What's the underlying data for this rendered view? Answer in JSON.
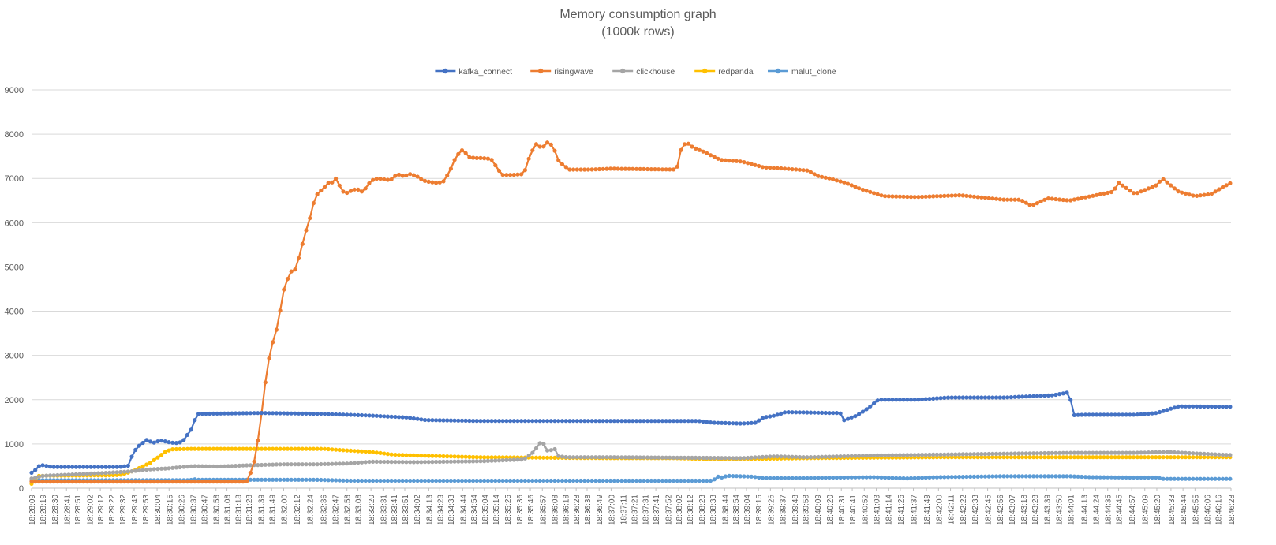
{
  "chart_data": {
    "type": "line",
    "title": "Memory consumption graph",
    "subtitle": "(1000k rows)",
    "xlabel": "",
    "ylabel": "",
    "ylim": [
      0,
      9000
    ],
    "yticks": [
      0,
      1000,
      2000,
      3000,
      4000,
      5000,
      6000,
      7000,
      8000,
      9000
    ],
    "grid": true,
    "legend_position": "top",
    "x_start": "18:28:09",
    "x_end": "18:46:28",
    "x_tick_labels": [
      "18:28:09",
      "18:28:19",
      "18:28:30",
      "18:28:41",
      "18:28:51",
      "18:29:02",
      "18:29:12",
      "18:29:22",
      "18:29:32",
      "18:29:43",
      "18:29:53",
      "18:30:04",
      "18:30:15",
      "18:30:26",
      "18:30:37",
      "18:30:47",
      "18:30:58",
      "18:31:08",
      "18:31:18",
      "18:31:28",
      "18:31:39",
      "18:31:49",
      "18:32:00",
      "18:32:12",
      "18:32:24",
      "18:32:36",
      "18:32:47",
      "18:32:58",
      "18:33:08",
      "18:33:20",
      "18:33:31",
      "18:33:41",
      "18:33:51",
      "18:34:02",
      "18:34:13",
      "18:34:23",
      "18:34:33",
      "18:34:44",
      "18:34:54",
      "18:35:04",
      "18:35:14",
      "18:35:25",
      "18:35:36",
      "18:35:46",
      "18:35:57",
      "18:36:08",
      "18:36:18",
      "18:36:28",
      "18:36:38",
      "18:36:49",
      "18:37:00",
      "18:37:11",
      "18:37:21",
      "18:37:31",
      "18:37:41",
      "18:37:52",
      "18:38:02",
      "18:38:12",
      "18:38:23",
      "18:38:33",
      "18:38:44",
      "18:38:54",
      "18:39:04",
      "18:39:15",
      "18:39:26",
      "18:39:37",
      "18:39:48",
      "18:39:58",
      "18:40:09",
      "18:40:20",
      "18:40:31",
      "18:40:41",
      "18:40:52",
      "18:41:03",
      "18:41:14",
      "18:41:25",
      "18:41:37",
      "18:41:49",
      "18:42:00",
      "18:42:11",
      "18:42:22",
      "18:42:33",
      "18:42:45",
      "18:42:56",
      "18:43:07",
      "18:43:18",
      "18:43:28",
      "18:43:39",
      "18:43:50",
      "18:44:01",
      "18:44:13",
      "18:44:24",
      "18:44:35",
      "18:44:45",
      "18:44:57",
      "18:45:09",
      "18:45:20",
      "18:45:33",
      "18:45:44",
      "18:45:55",
      "18:46:06",
      "18:46:16",
      "18:46:28"
    ],
    "series": [
      {
        "name": "kafka_connect",
        "color": "#4472C4",
        "x": [
          "18:28:09",
          "18:28:12",
          "18:28:17",
          "18:28:28",
          "18:29:30",
          "18:29:38",
          "18:29:42",
          "18:29:47",
          "18:29:55",
          "18:30:00",
          "18:30:07",
          "18:30:17",
          "18:30:24",
          "18:30:29",
          "18:30:33",
          "18:30:37",
          "18:30:40",
          "18:31:39",
          "18:32:36",
          "18:33:20",
          "18:33:52",
          "18:34:10",
          "18:35:00",
          "18:38:20",
          "18:38:33",
          "18:39:00",
          "18:39:12",
          "18:39:20",
          "18:39:30",
          "18:39:40",
          "18:40:20",
          "18:40:30",
          "18:40:33",
          "18:40:45",
          "18:40:55",
          "18:41:05",
          "18:41:40",
          "18:42:10",
          "18:43:00",
          "18:43:45",
          "18:44:00",
          "18:44:03",
          "18:44:15",
          "18:45:00",
          "18:45:20",
          "18:45:40",
          "18:46:28"
        ],
        "values": [
          350,
          400,
          530,
          480,
          480,
          510,
          800,
          950,
          1100,
          1020,
          1080,
          1030,
          1020,
          1100,
          1250,
          1380,
          1680,
          1700,
          1680,
          1640,
          1600,
          1540,
          1520,
          1520,
          1480,
          1460,
          1480,
          1600,
          1640,
          1720,
          1700,
          1700,
          1530,
          1640,
          1800,
          2000,
          2000,
          2050,
          2050,
          2100,
          2170,
          1650,
          1660,
          1660,
          1700,
          1850,
          1840
        ]
      },
      {
        "name": "risingwave",
        "color": "#ED7D31",
        "x": [
          "18:28:09",
          "18:31:26",
          "18:31:29",
          "18:31:33",
          "18:31:38",
          "18:31:42",
          "18:31:47",
          "18:31:51",
          "18:31:55",
          "18:31:59",
          "18:32:03",
          "18:32:07",
          "18:32:11",
          "18:32:15",
          "18:32:19",
          "18:32:24",
          "18:32:28",
          "18:32:32",
          "18:32:36",
          "18:32:40",
          "18:32:44",
          "18:32:48",
          "18:32:52",
          "18:32:56",
          "18:33:00",
          "18:33:04",
          "18:33:08",
          "18:33:12",
          "18:33:16",
          "18:33:20",
          "18:33:26",
          "18:33:32",
          "18:33:38",
          "18:33:44",
          "18:33:50",
          "18:33:56",
          "18:34:02",
          "18:34:08",
          "18:34:14",
          "18:34:20",
          "18:34:26",
          "18:34:32",
          "18:34:38",
          "18:34:44",
          "18:34:50",
          "18:34:56",
          "18:35:02",
          "18:35:10",
          "18:35:20",
          "18:35:25",
          "18:35:30",
          "18:35:40",
          "18:35:46",
          "18:35:52",
          "18:35:57",
          "18:36:00",
          "18:36:04",
          "18:36:08",
          "18:36:12",
          "18:36:16",
          "18:36:22",
          "18:36:30",
          "18:36:40",
          "18:37:00",
          "18:37:30",
          "18:38:00",
          "18:38:05",
          "18:38:10",
          "18:38:15",
          "18:38:25",
          "18:38:40",
          "18:39:00",
          "18:39:20",
          "18:39:40",
          "18:40:00",
          "18:40:10",
          "18:40:20",
          "18:40:35",
          "18:40:50",
          "18:41:10",
          "18:41:40",
          "18:42:20",
          "18:43:00",
          "18:43:15",
          "18:43:25",
          "18:43:40",
          "18:44:00",
          "18:44:20",
          "18:44:40",
          "18:44:45",
          "18:45:00",
          "18:45:20",
          "18:45:25",
          "18:45:40",
          "18:45:55",
          "18:46:10",
          "18:46:20",
          "18:46:28"
        ],
        "values": [
          150,
          150,
          300,
          600,
          1300,
          2200,
          3000,
          3400,
          3700,
          4400,
          4700,
          4900,
          4950,
          5300,
          5700,
          6100,
          6500,
          6700,
          6750,
          6900,
          6900,
          7000,
          6800,
          6650,
          6700,
          6750,
          6750,
          6700,
          6800,
          6950,
          7000,
          6980,
          6960,
          7100,
          7050,
          7100,
          7050,
          6950,
          6920,
          6900,
          6920,
          7150,
          7500,
          7650,
          7480,
          7460,
          7460,
          7440,
          7080,
          7080,
          7080,
          7100,
          7550,
          7800,
          7650,
          7820,
          7800,
          7650,
          7400,
          7300,
          7200,
          7200,
          7200,
          7220,
          7210,
          7200,
          7750,
          7800,
          7700,
          7600,
          7420,
          7380,
          7250,
          7220,
          7180,
          7050,
          7000,
          6900,
          6750,
          6600,
          6580,
          6620,
          6520,
          6520,
          6380,
          6550,
          6500,
          6600,
          6700,
          6900,
          6650,
          6850,
          7000,
          6700,
          6600,
          6650,
          6800,
          6900
        ]
      },
      {
        "name": "clickhouse",
        "color": "#A5A5A5",
        "x": [
          "18:28:09",
          "18:28:20",
          "18:29:20",
          "18:29:40",
          "18:29:55",
          "18:30:15",
          "18:30:37",
          "18:31:00",
          "18:31:30",
          "18:32:00",
          "18:32:30",
          "18:33:00",
          "18:33:20",
          "18:34:00",
          "18:34:30",
          "18:35:00",
          "18:35:40",
          "18:35:48",
          "18:35:53",
          "18:35:57",
          "18:36:00",
          "18:36:05",
          "18:36:08",
          "18:36:12",
          "18:36:20",
          "18:37:00",
          "18:38:00",
          "18:39:00",
          "18:39:30",
          "18:40:00",
          "18:40:30",
          "18:41:00",
          "18:42:00",
          "18:43:00",
          "18:44:00",
          "18:45:00",
          "18:45:30",
          "18:46:00",
          "18:46:28"
        ],
        "values": [
          220,
          280,
          350,
          380,
          420,
          450,
          500,
          490,
          520,
          540,
          540,
          560,
          600,
          590,
          600,
          610,
          650,
          800,
          950,
          1100,
          850,
          860,
          900,
          720,
          700,
          700,
          690,
          680,
          720,
          700,
          720,
          740,
          760,
          780,
          800,
          800,
          820,
          780,
          750
        ]
      },
      {
        "name": "redpanda",
        "color": "#FFC000",
        "x": [
          "18:28:09",
          "18:28:15",
          "18:29:20",
          "18:29:30",
          "18:29:40",
          "18:29:50",
          "18:29:58",
          "18:30:05",
          "18:30:12",
          "18:30:18",
          "18:30:37",
          "18:31:00",
          "18:32:00",
          "18:32:36",
          "18:33:00",
          "18:33:20",
          "18:33:40",
          "18:34:00",
          "18:34:30",
          "18:35:00",
          "18:36:00",
          "18:37:00",
          "18:38:00",
          "18:38:30",
          "18:39:00",
          "18:40:00",
          "18:41:00",
          "18:42:00",
          "18:43:00",
          "18:44:00",
          "18:45:00",
          "18:46:28"
        ],
        "values": [
          100,
          280,
          290,
          300,
          370,
          480,
          580,
          700,
          830,
          880,
          890,
          890,
          890,
          890,
          850,
          820,
          760,
          740,
          720,
          700,
          690,
          680,
          680,
          660,
          660,
          680,
          690,
          700,
          700,
          700,
          700,
          700
        ]
      },
      {
        "name": "malut_clone",
        "color": "#5B9BD5",
        "x": [
          "18:28:09",
          "18:30:35",
          "18:30:37",
          "18:30:39",
          "18:32:30",
          "18:33:00",
          "18:34:00",
          "18:35:00",
          "18:36:00",
          "18:37:00",
          "18:38:00",
          "18:38:34",
          "18:38:36",
          "18:38:42",
          "18:38:46",
          "18:39:10",
          "18:39:18",
          "18:40:00",
          "18:41:00",
          "18:41:30",
          "18:42:00",
          "18:43:00",
          "18:44:00",
          "18:44:20",
          "18:45:00",
          "18:45:20",
          "18:45:26",
          "18:46:28"
        ],
        "values": [
          180,
          180,
          250,
          190,
          190,
          170,
          170,
          170,
          170,
          170,
          170,
          170,
          270,
          240,
          280,
          260,
          230,
          230,
          250,
          220,
          250,
          270,
          270,
          250,
          240,
          240,
          210,
          210
        ]
      }
    ]
  }
}
